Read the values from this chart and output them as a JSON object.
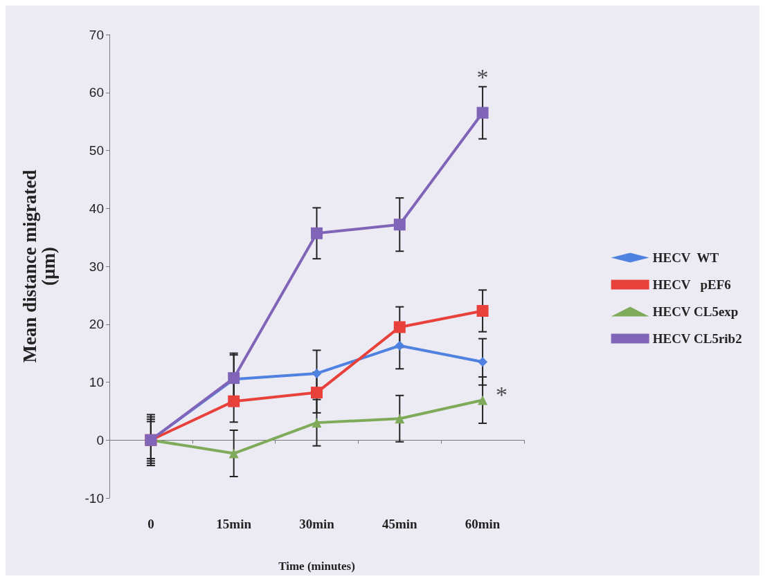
{
  "chart_data": {
    "type": "line",
    "xlabel": "Time (minutes)",
    "ylabel": "Mean distance migrated\n(µm)",
    "categories": [
      "0",
      "15min",
      "30min",
      "45min",
      "60min"
    ],
    "series": [
      {
        "name": "HECV  WT",
        "color": "#4f81e0",
        "marker": "diamond",
        "values": [
          0,
          10.5,
          11.5,
          16.3,
          13.5
        ],
        "errors": [
          4.4,
          4.5,
          4,
          4,
          4
        ]
      },
      {
        "name": "HECV   pEF6",
        "color": "#e8413c",
        "marker": "square",
        "values": [
          0,
          6.7,
          8.2,
          19.5,
          22.3
        ],
        "errors": [
          4,
          3.6,
          3.5,
          3.5,
          3.6
        ]
      },
      {
        "name": "HECV CL5exp",
        "color": "#7faa5a",
        "marker": "triangle",
        "values": [
          0,
          -2.3,
          3,
          3.7,
          6.9
        ],
        "errors": [
          3.6,
          4,
          4,
          4,
          4
        ]
      },
      {
        "name": "HECV CL5rib2",
        "color": "#8064b8",
        "marker": "square",
        "values": [
          0,
          10.7,
          35.7,
          37.2,
          56.5
        ],
        "errors": [
          3.2,
          4,
          4.4,
          4.6,
          4.5
        ]
      }
    ],
    "annotations": [
      {
        "text": "*",
        "x": "60min",
        "y": 61
      },
      {
        "text": "*",
        "x": "60min",
        "y": 6.9
      }
    ],
    "ylim": [
      -10,
      70
    ],
    "yticks": [
      -10,
      0,
      10,
      20,
      30,
      40,
      50,
      60,
      70
    ],
    "legend": "right"
  }
}
